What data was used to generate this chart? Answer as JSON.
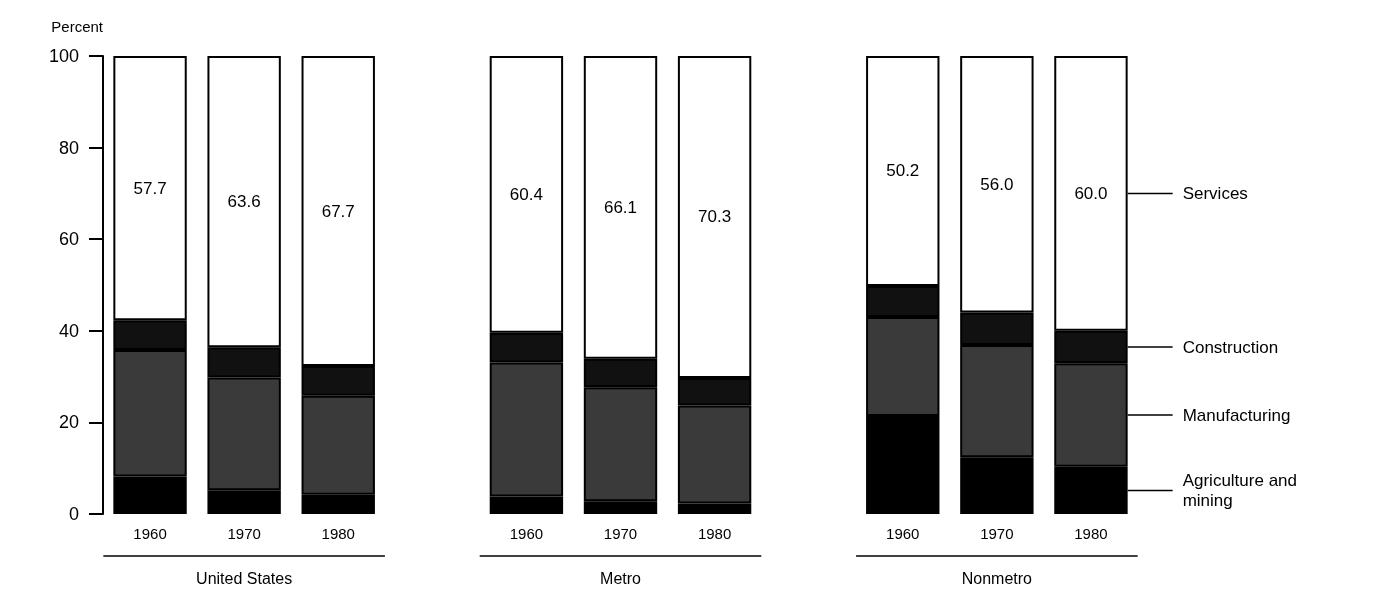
{
  "chart_data": {
    "type": "bar",
    "stacked": true,
    "ylabel": "Percent",
    "categories": [
      "1960",
      "1970",
      "1980",
      null,
      "1960",
      "1970",
      "1980",
      null,
      "1960",
      "1970",
      "1980"
    ],
    "series": [
      {
        "name": "Agriculture and mining",
        "color": "#000000",
        "values": [
          8.2,
          5.2,
          4.2,
          null,
          3.8,
          2.8,
          2.3,
          null,
          21.4,
          12.4,
          10.3
        ]
      },
      {
        "name": "Manufacturing",
        "color": "#3a3a3a",
        "values": [
          27.6,
          24.6,
          21.6,
          null,
          29.3,
          24.9,
          21.4,
          null,
          21.6,
          24.5,
          22.6
        ]
      },
      {
        "name": "Construction",
        "color": "#111111",
        "values": [
          6.5,
          6.6,
          6.5,
          null,
          6.5,
          6.2,
          6.0,
          null,
          6.8,
          7.1,
          7.1
        ]
      },
      {
        "name": "Services",
        "color": "#ffffff",
        "values": [
          57.7,
          63.6,
          67.7,
          null,
          60.4,
          66.1,
          70.3,
          null,
          50.2,
          56.0,
          60.0
        ],
        "value_labels": [
          "57.7",
          "63.6",
          "67.7",
          null,
          "60.4",
          "66.1",
          "70.3",
          null,
          "50.2",
          "56.0",
          "60.0"
        ]
      }
    ],
    "annotations": [
      "United States",
      "Metro",
      "Nonmetro"
    ],
    "ylim": [
      0,
      100
    ],
    "yticks": [
      0,
      20,
      40,
      60,
      80,
      100
    ],
    "grid": false,
    "legend": "right"
  }
}
